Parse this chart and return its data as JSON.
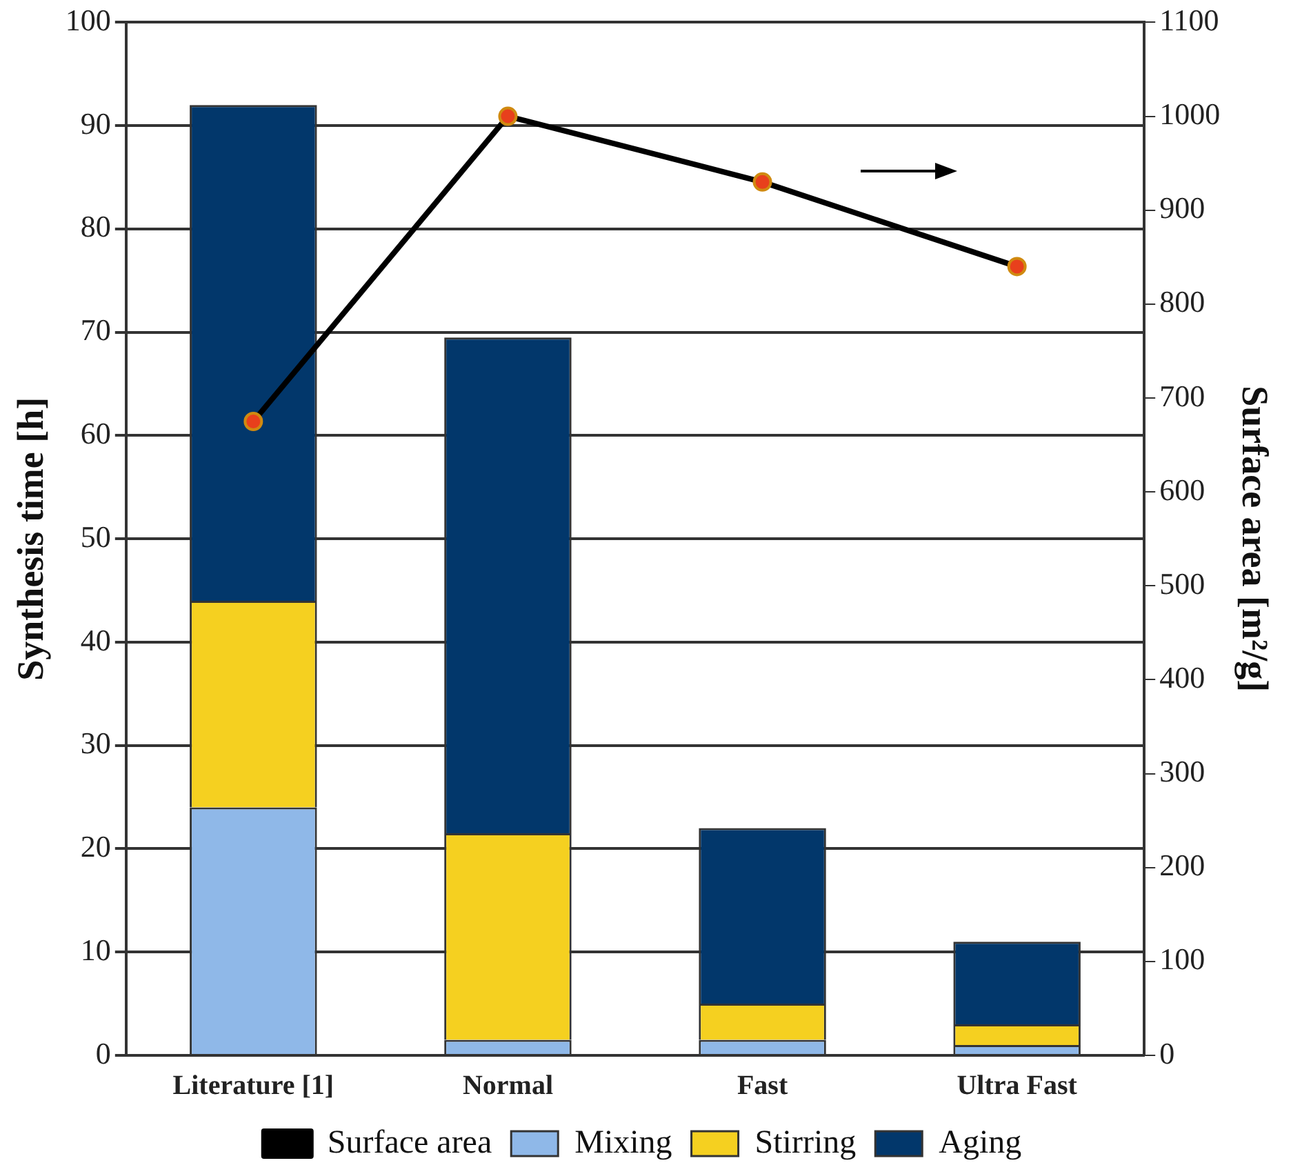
{
  "chart_data": {
    "type": "bar",
    "stacked": true,
    "categories": [
      "Literature [1]",
      "Normal",
      "Fast",
      "Ultra Fast"
    ],
    "series": [
      {
        "name": "Mixing",
        "color": "#8fb8e8",
        "values": [
          24,
          1.5,
          1.5,
          1
        ]
      },
      {
        "name": "Stirring",
        "color": "#f5d020",
        "values": [
          20,
          20,
          3.5,
          2
        ]
      },
      {
        "name": "Aging",
        "color": "#02376b",
        "values": [
          48,
          48,
          17,
          8
        ]
      },
      {
        "name": "Surface area",
        "type": "line",
        "axis": "y2",
        "color": "#000000",
        "values": [
          675,
          1000,
          930,
          840
        ]
      }
    ],
    "ylabel": "Synthesis time [h]",
    "y2label": "Surface area [m²/g]",
    "ylim": [
      0,
      100
    ],
    "yticks": [
      0,
      10,
      20,
      30,
      40,
      50,
      60,
      70,
      80,
      90,
      100
    ],
    "y2lim": [
      0,
      1100
    ],
    "y2ticks": [
      0,
      100,
      200,
      300,
      400,
      500,
      600,
      700,
      800,
      900,
      1000,
      1100
    ],
    "grid": "y",
    "legend": "bottom",
    "marker": "circle"
  }
}
